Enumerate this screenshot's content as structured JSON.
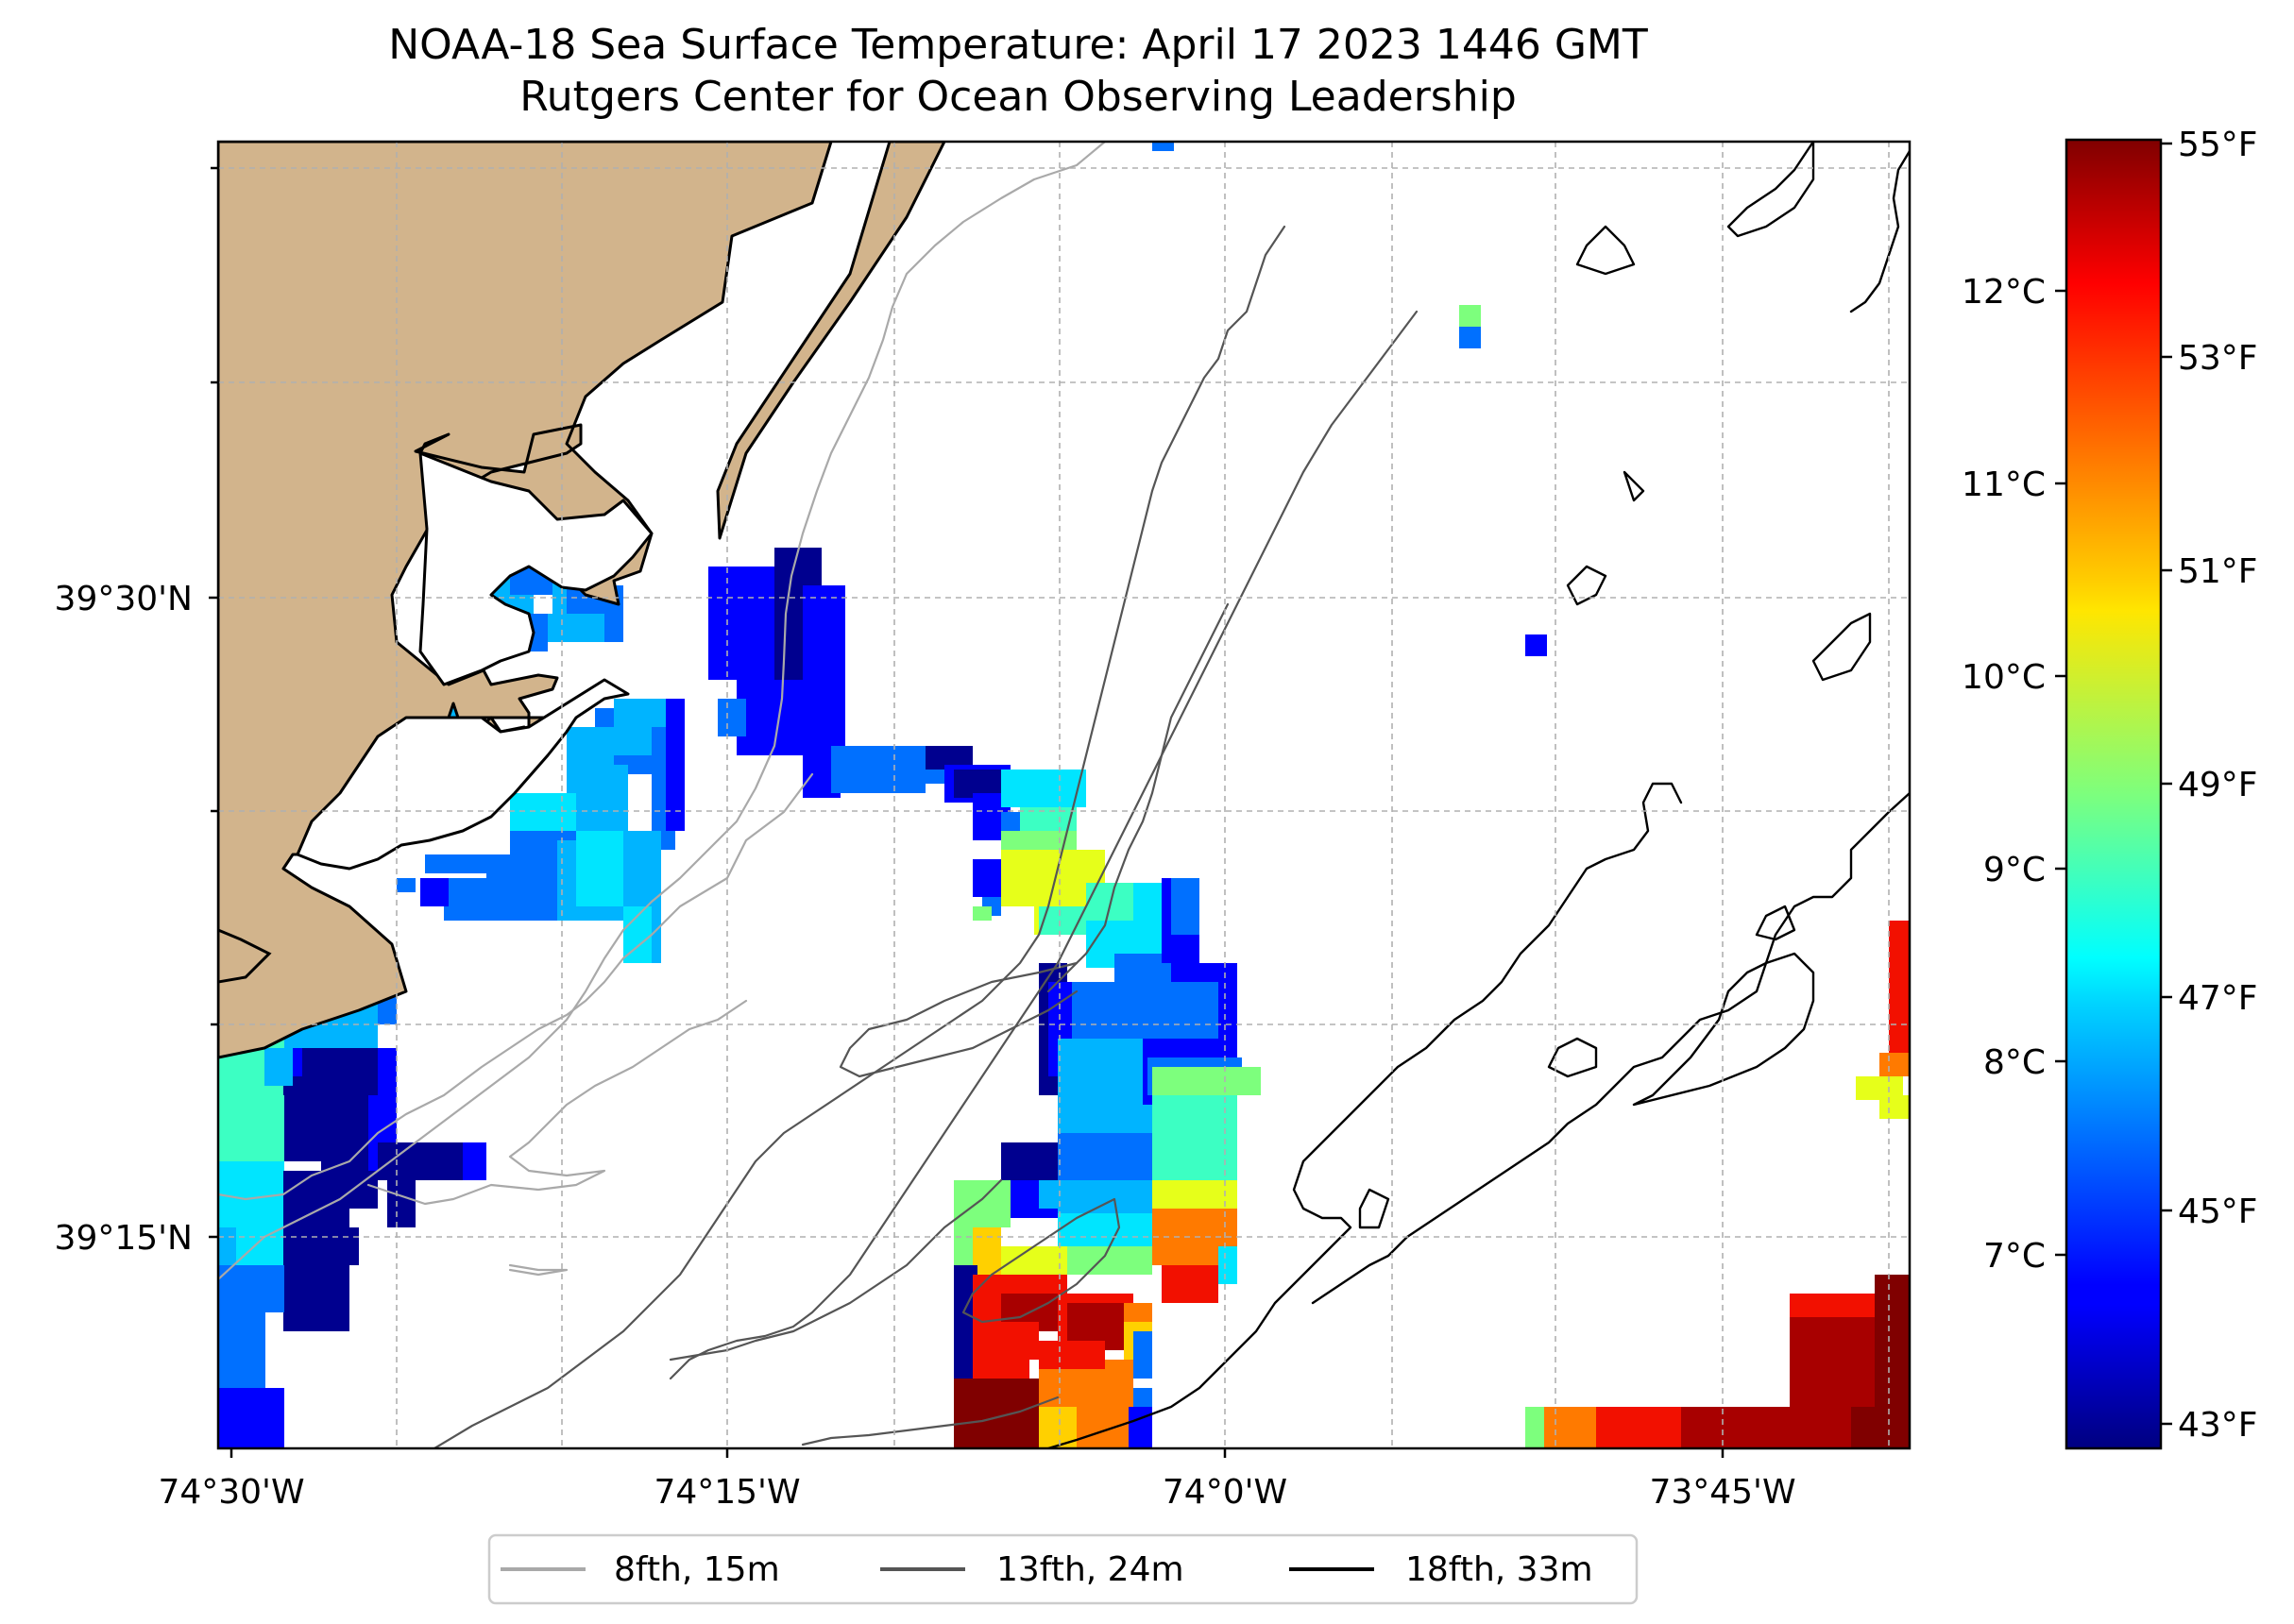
{
  "title": {
    "line1": "NOAA-18 Sea Surface Temperature: April 17 2023 1446 GMT",
    "line2": "Rutgers Center for Ocean Observing Leadership"
  },
  "map": {
    "lon_ticks": [
      "74°30'W",
      "74°15'W",
      "74°0'W",
      "73°45'W"
    ],
    "lat_ticks": [
      "39°30'N",
      "39°15'N"
    ],
    "land_color": "#d2b48c",
    "grid": true
  },
  "legend": {
    "placement": "bottom-center",
    "entries": [
      {
        "label": "8fth, 15m",
        "color": "#a9a9a9"
      },
      {
        "label": "13fth, 24m",
        "color": "#555555"
      },
      {
        "label": "18fth, 33m",
        "color": "#000000"
      }
    ]
  },
  "colorbar": {
    "colormap": "jet",
    "fahrenheit_ticks": [
      "55°F",
      "53°F",
      "51°F",
      "49°F",
      "47°F",
      "45°F",
      "43°F"
    ],
    "celsius_ticks": [
      "12°C",
      "11°C",
      "10°C",
      "9°C",
      "8°C",
      "7°C"
    ]
  },
  "palette": {
    "dark_navy": "#00008f",
    "blue": "#0000ff",
    "azure": "#0070ff",
    "sky": "#00b4ff",
    "cyan": "#00e5ff",
    "aqua_green": "#3cffc3",
    "green": "#7dff7d",
    "yellow": "#e6ff1a",
    "gold": "#ffd000",
    "orange": "#ff7a00",
    "red": "#f21000",
    "dark_red": "#a80000",
    "maroon": "#800000"
  }
}
